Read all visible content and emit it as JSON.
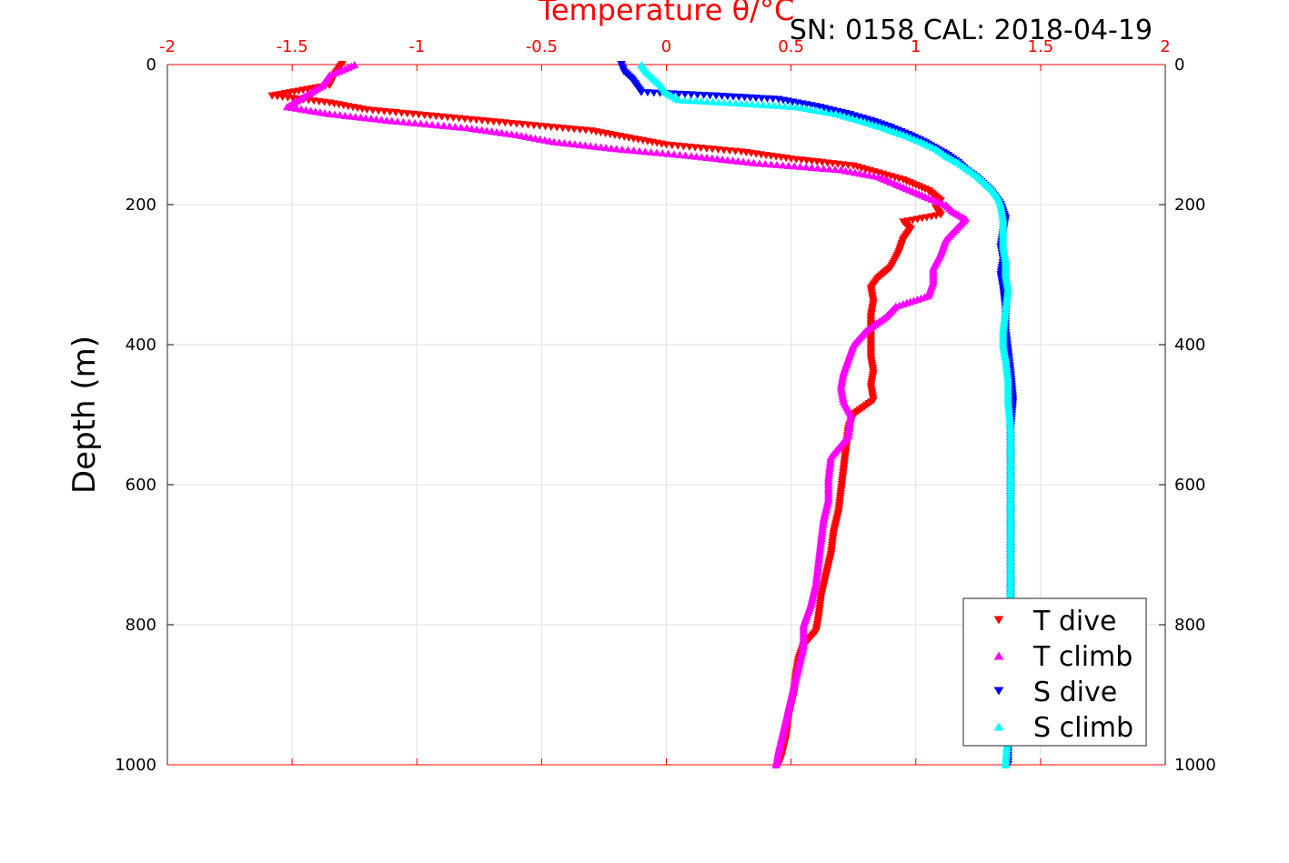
{
  "header": {
    "text": "SN: 0158  CAL: 2018-04-19"
  },
  "chart_data": {
    "type": "scatter",
    "xlabel": "Temperature θ/°C",
    "ylabel": "Depth (m)",
    "xlim": [
      -2,
      2
    ],
    "ylim": [
      0,
      1000
    ],
    "y_reversed": true,
    "x_axis_position": "top",
    "x_ticks": [
      "-2",
      "-1.5",
      "-1",
      "-0.5",
      "0",
      "0.5",
      "1",
      "1.5",
      "2"
    ],
    "y_ticks": [
      "0",
      "200",
      "400",
      "600",
      "800",
      "1000"
    ],
    "grid": true,
    "legend_position": "bottom-right",
    "series": [
      {
        "name": "T dive",
        "color": "#ff0000",
        "marker": "triangle-down",
        "depth": [
          0,
          15,
          30,
          45,
          55,
          65,
          75,
          85,
          95,
          105,
          115,
          125,
          135,
          145,
          155,
          165,
          180,
          195,
          205,
          215,
          225,
          235,
          250,
          270,
          290,
          305,
          320,
          340,
          360,
          380,
          400,
          420,
          440,
          460,
          480,
          500,
          520,
          550,
          580,
          610,
          640,
          670,
          700,
          730,
          760,
          790,
          810,
          830,
          850,
          870,
          900,
          930,
          960,
          990,
          1000
        ],
        "temp": [
          -1.3,
          -1.33,
          -1.35,
          -1.58,
          -1.35,
          -1.2,
          -0.9,
          -0.6,
          -0.3,
          -0.15,
          0.0,
          0.3,
          0.5,
          0.75,
          0.85,
          0.95,
          1.05,
          1.1,
          1.08,
          1.1,
          0.95,
          0.98,
          0.95,
          0.93,
          0.9,
          0.85,
          0.82,
          0.83,
          0.82,
          0.82,
          0.82,
          0.82,
          0.83,
          0.82,
          0.83,
          0.75,
          0.73,
          0.72,
          0.71,
          0.7,
          0.69,
          0.67,
          0.66,
          0.64,
          0.62,
          0.61,
          0.6,
          0.55,
          0.53,
          0.52,
          0.51,
          0.49,
          0.48,
          0.46,
          0.45
        ]
      },
      {
        "name": "T climb",
        "color": "#ff00ff",
        "marker": "triangle-up",
        "depth": [
          0,
          15,
          30,
          45,
          60,
          70,
          80,
          90,
          100,
          110,
          120,
          130,
          140,
          150,
          160,
          175,
          190,
          200,
          210,
          220,
          235,
          250,
          270,
          290,
          310,
          330,
          345,
          360,
          380,
          400,
          420,
          440,
          460,
          480,
          500,
          530,
          560,
          590,
          620,
          650,
          680,
          710,
          740,
          770,
          800,
          830,
          860,
          890,
          920,
          950,
          980,
          1000
        ],
        "temp": [
          -1.25,
          -1.35,
          -1.38,
          -1.45,
          -1.52,
          -1.35,
          -1.1,
          -0.8,
          -0.6,
          -0.45,
          -0.2,
          0.1,
          0.35,
          0.7,
          0.85,
          0.95,
          1.05,
          1.12,
          1.15,
          1.2,
          1.16,
          1.12,
          1.1,
          1.07,
          1.07,
          1.05,
          0.92,
          0.88,
          0.8,
          0.75,
          0.73,
          0.71,
          0.7,
          0.71,
          0.74,
          0.73,
          0.66,
          0.65,
          0.65,
          0.63,
          0.62,
          0.61,
          0.6,
          0.58,
          0.55,
          0.55,
          0.53,
          0.51,
          0.49,
          0.47,
          0.45,
          0.44
        ]
      },
      {
        "name": "S dive",
        "color": "#0000ff",
        "marker": "triangle-down",
        "depth": [
          0,
          10,
          20,
          30,
          40,
          45,
          50,
          60,
          70,
          80,
          90,
          100,
          110,
          120,
          130,
          140,
          150,
          160,
          170,
          180,
          190,
          200,
          220,
          240,
          260,
          280,
          300,
          320,
          350,
          380,
          410,
          440,
          480,
          520,
          560,
          600,
          650,
          700,
          750,
          800,
          850,
          900,
          950,
          1000
        ],
        "temp": [
          -0.18,
          -0.17,
          -0.14,
          -0.12,
          -0.1,
          0.2,
          0.45,
          0.6,
          0.72,
          0.82,
          0.9,
          0.97,
          1.03,
          1.08,
          1.13,
          1.17,
          1.2,
          1.24,
          1.27,
          1.3,
          1.32,
          1.34,
          1.36,
          1.35,
          1.34,
          1.35,
          1.34,
          1.35,
          1.36,
          1.36,
          1.37,
          1.38,
          1.39,
          1.38,
          1.38,
          1.38,
          1.38,
          1.38,
          1.38,
          1.38,
          1.37,
          1.37,
          1.37,
          1.37
        ]
      },
      {
        "name": "S climb",
        "color": "#00ffff",
        "marker": "triangle-up",
        "depth": [
          0,
          10,
          20,
          30,
          40,
          50,
          55,
          60,
          70,
          80,
          90,
          100,
          110,
          120,
          130,
          140,
          150,
          160,
          170,
          180,
          190,
          200,
          220,
          240,
          260,
          280,
          300,
          320,
          350,
          380,
          400,
          420,
          450,
          480,
          520,
          560,
          600,
          650,
          700,
          750,
          800,
          850,
          900,
          950,
          1000
        ],
        "temp": [
          -0.1,
          -0.08,
          -0.05,
          -0.02,
          0.0,
          0.05,
          0.3,
          0.52,
          0.68,
          0.78,
          0.87,
          0.95,
          1.02,
          1.08,
          1.12,
          1.17,
          1.21,
          1.25,
          1.28,
          1.31,
          1.33,
          1.34,
          1.35,
          1.35,
          1.35,
          1.36,
          1.36,
          1.37,
          1.36,
          1.35,
          1.35,
          1.36,
          1.37,
          1.37,
          1.38,
          1.38,
          1.38,
          1.38,
          1.38,
          1.38,
          1.37,
          1.37,
          1.37,
          1.37,
          1.36
        ]
      }
    ]
  }
}
